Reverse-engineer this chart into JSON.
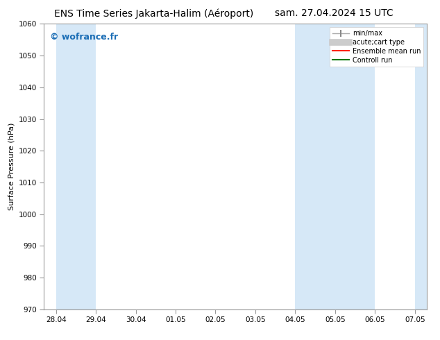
{
  "title_left": "ENS Time Series Jakarta-Halim (Aéroport)",
  "title_right": "sam. 27.04.2024 15 UTC",
  "ylabel": "Surface Pressure (hPa)",
  "ylim": [
    970,
    1060
  ],
  "yticks": [
    970,
    980,
    990,
    1000,
    1010,
    1020,
    1030,
    1040,
    1050,
    1060
  ],
  "xtick_labels": [
    "28.04",
    "29.04",
    "30.04",
    "01.05",
    "02.05",
    "03.05",
    "04.05",
    "05.05",
    "06.05",
    "07.05"
  ],
  "shaded_bands": [
    {
      "xstart": 0,
      "xend": 1,
      "color": "#d6e8f7"
    },
    {
      "xstart": 6,
      "xend": 8,
      "color": "#d6e8f7"
    },
    {
      "xstart": 9,
      "xend": 10,
      "color": "#d6e8f7"
    }
  ],
  "watermark": "© wofrance.fr",
  "watermark_color": "#1a6db5",
  "bg_color": "#ffffff",
  "spine_color": "#999999",
  "tick_color": "#444444",
  "legend_fontsize": 7,
  "title_fontsize": 10,
  "ylabel_fontsize": 8
}
